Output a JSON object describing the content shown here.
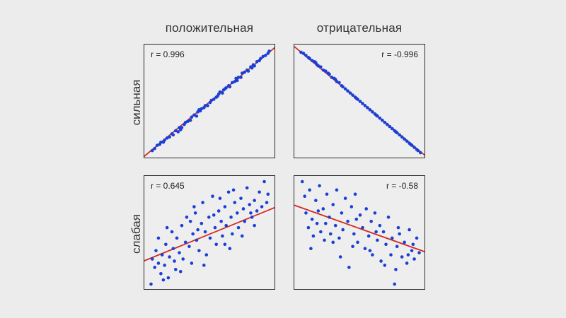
{
  "chart_data": {
    "type": "scatter",
    "columns": [
      "положительная",
      "отрицательная"
    ],
    "rows": [
      "сильная",
      "слабая"
    ],
    "colors": {
      "points": "#1a3fd6",
      "line": "#d42a20",
      "frame": "#2b2b2b",
      "background": "#eeeeee"
    },
    "grid": false,
    "panels": [
      {
        "row": 0,
        "col": 0,
        "r_label": "r = 0.996",
        "label_pos": "top-left",
        "xlim": [
          0,
          1
        ],
        "ylim": [
          0,
          1
        ],
        "fit": [
          [
            0,
            0.02
          ],
          [
            1,
            1.0
          ]
        ],
        "points": [
          [
            0.03,
            0.04
          ],
          [
            0.05,
            0.06
          ],
          [
            0.07,
            0.09
          ],
          [
            0.09,
            0.1
          ],
          [
            0.1,
            0.12
          ],
          [
            0.12,
            0.12
          ],
          [
            0.13,
            0.14
          ],
          [
            0.15,
            0.16
          ],
          [
            0.17,
            0.17
          ],
          [
            0.19,
            0.2
          ],
          [
            0.2,
            0.19
          ],
          [
            0.22,
            0.23
          ],
          [
            0.24,
            0.22
          ],
          [
            0.25,
            0.26
          ],
          [
            0.27,
            0.26
          ],
          [
            0.29,
            0.29
          ],
          [
            0.3,
            0.31
          ],
          [
            0.32,
            0.32
          ],
          [
            0.34,
            0.33
          ],
          [
            0.35,
            0.36
          ],
          [
            0.37,
            0.38
          ],
          [
            0.39,
            0.37
          ],
          [
            0.4,
            0.41
          ],
          [
            0.41,
            0.43
          ],
          [
            0.43,
            0.44
          ],
          [
            0.45,
            0.45
          ],
          [
            0.46,
            0.47
          ],
          [
            0.48,
            0.47
          ],
          [
            0.5,
            0.5
          ],
          [
            0.51,
            0.52
          ],
          [
            0.53,
            0.53
          ],
          [
            0.55,
            0.55
          ],
          [
            0.56,
            0.56
          ],
          [
            0.58,
            0.6
          ],
          [
            0.6,
            0.59
          ],
          [
            0.61,
            0.62
          ],
          [
            0.63,
            0.64
          ],
          [
            0.65,
            0.66
          ],
          [
            0.66,
            0.65
          ],
          [
            0.68,
            0.69
          ],
          [
            0.7,
            0.7
          ],
          [
            0.71,
            0.73
          ],
          [
            0.73,
            0.74
          ],
          [
            0.75,
            0.74
          ],
          [
            0.76,
            0.78
          ],
          [
            0.78,
            0.79
          ],
          [
            0.8,
            0.81
          ],
          [
            0.81,
            0.8
          ],
          [
            0.83,
            0.84
          ],
          [
            0.85,
            0.86
          ],
          [
            0.86,
            0.85
          ],
          [
            0.88,
            0.89
          ],
          [
            0.9,
            0.9
          ],
          [
            0.91,
            0.92
          ],
          [
            0.93,
            0.94
          ],
          [
            0.95,
            0.95
          ],
          [
            0.97,
            0.97
          ],
          [
            0.98,
            0.99
          ],
          [
            0.42,
            0.42
          ],
          [
            0.62,
            0.63
          ],
          [
            0.72,
            0.71
          ],
          [
            0.57,
            0.58
          ],
          [
            0.26,
            0.24
          ],
          [
            0.84,
            0.83
          ]
        ]
      },
      {
        "row": 0,
        "col": 1,
        "r_label": "r = -0.996",
        "label_pos": "top-right",
        "xlim": [
          0,
          1
        ],
        "ylim": [
          0,
          1
        ],
        "fit": [
          [
            0,
            1.0
          ],
          [
            1,
            0.02
          ]
        ],
        "points": [
          [
            0.02,
            0.98
          ],
          [
            0.04,
            0.97
          ],
          [
            0.06,
            0.95
          ],
          [
            0.08,
            0.93
          ],
          [
            0.09,
            0.92
          ],
          [
            0.11,
            0.9
          ],
          [
            0.13,
            0.89
          ],
          [
            0.15,
            0.86
          ],
          [
            0.16,
            0.85
          ],
          [
            0.18,
            0.84
          ],
          [
            0.2,
            0.81
          ],
          [
            0.22,
            0.8
          ],
          [
            0.24,
            0.78
          ],
          [
            0.25,
            0.77
          ],
          [
            0.27,
            0.74
          ],
          [
            0.29,
            0.73
          ],
          [
            0.31,
            0.7
          ],
          [
            0.33,
            0.69
          ],
          [
            0.35,
            0.66
          ],
          [
            0.36,
            0.65
          ],
          [
            0.38,
            0.63
          ],
          [
            0.4,
            0.61
          ],
          [
            0.42,
            0.59
          ],
          [
            0.44,
            0.57
          ],
          [
            0.46,
            0.55
          ],
          [
            0.48,
            0.53
          ],
          [
            0.5,
            0.51
          ],
          [
            0.52,
            0.49
          ],
          [
            0.54,
            0.47
          ],
          [
            0.56,
            0.45
          ],
          [
            0.58,
            0.43
          ],
          [
            0.6,
            0.41
          ],
          [
            0.62,
            0.39
          ],
          [
            0.64,
            0.37
          ],
          [
            0.66,
            0.35
          ],
          [
            0.68,
            0.33
          ],
          [
            0.7,
            0.31
          ],
          [
            0.72,
            0.29
          ],
          [
            0.74,
            0.27
          ],
          [
            0.76,
            0.25
          ],
          [
            0.78,
            0.23
          ],
          [
            0.8,
            0.21
          ],
          [
            0.82,
            0.19
          ],
          [
            0.84,
            0.17
          ],
          [
            0.86,
            0.15
          ],
          [
            0.88,
            0.13
          ],
          [
            0.9,
            0.11
          ],
          [
            0.92,
            0.09
          ],
          [
            0.94,
            0.07
          ],
          [
            0.96,
            0.05
          ],
          [
            0.97,
            0.04
          ],
          [
            0.99,
            0.02
          ],
          [
            0.14,
            0.88
          ],
          [
            0.3,
            0.72
          ],
          [
            0.47,
            0.54
          ],
          [
            0.63,
            0.38
          ],
          [
            0.79,
            0.22
          ],
          [
            0.91,
            0.1
          ]
        ]
      },
      {
        "row": 1,
        "col": 0,
        "r_label": "r = 0.645",
        "label_pos": "top-left",
        "xlim": [
          0,
          1
        ],
        "ylim": [
          0,
          1
        ],
        "fit": [
          [
            0,
            0.26
          ],
          [
            1,
            0.74
          ]
        ],
        "points": [
          [
            0.02,
            0.02
          ],
          [
            0.03,
            0.26
          ],
          [
            0.05,
            0.18
          ],
          [
            0.06,
            0.34
          ],
          [
            0.08,
            0.22
          ],
          [
            0.1,
            0.12
          ],
          [
            0.11,
            0.3
          ],
          [
            0.13,
            0.2
          ],
          [
            0.14,
            0.4
          ],
          [
            0.16,
            0.08
          ],
          [
            0.17,
            0.28
          ],
          [
            0.19,
            0.52
          ],
          [
            0.2,
            0.36
          ],
          [
            0.22,
            0.16
          ],
          [
            0.23,
            0.46
          ],
          [
            0.25,
            0.32
          ],
          [
            0.27,
            0.58
          ],
          [
            0.28,
            0.26
          ],
          [
            0.3,
            0.42
          ],
          [
            0.31,
            0.66
          ],
          [
            0.33,
            0.38
          ],
          [
            0.35,
            0.22
          ],
          [
            0.36,
            0.5
          ],
          [
            0.38,
            0.7
          ],
          [
            0.39,
            0.44
          ],
          [
            0.41,
            0.34
          ],
          [
            0.43,
            0.6
          ],
          [
            0.44,
            0.8
          ],
          [
            0.46,
            0.52
          ],
          [
            0.47,
            0.3
          ],
          [
            0.49,
            0.66
          ],
          [
            0.5,
            0.46
          ],
          [
            0.52,
            0.86
          ],
          [
            0.54,
            0.56
          ],
          [
            0.55,
            0.4
          ],
          [
            0.57,
            0.72
          ],
          [
            0.59,
            0.62
          ],
          [
            0.6,
            0.48
          ],
          [
            0.62,
            0.76
          ],
          [
            0.63,
            0.58
          ],
          [
            0.65,
            0.9
          ],
          [
            0.67,
            0.66
          ],
          [
            0.68,
            0.5
          ],
          [
            0.7,
            0.8
          ],
          [
            0.72,
            0.7
          ],
          [
            0.73,
            0.56
          ],
          [
            0.75,
            0.84
          ],
          [
            0.77,
            0.74
          ],
          [
            0.78,
            0.62
          ],
          [
            0.8,
            0.94
          ],
          [
            0.82,
            0.78
          ],
          [
            0.84,
            0.66
          ],
          [
            0.86,
            0.82
          ],
          [
            0.88,
            0.72
          ],
          [
            0.9,
            0.9
          ],
          [
            0.92,
            0.76
          ],
          [
            0.94,
            1.0
          ],
          [
            0.96,
            0.8
          ],
          [
            0.15,
            0.56
          ],
          [
            0.26,
            0.14
          ],
          [
            0.37,
            0.76
          ],
          [
            0.45,
            0.2
          ],
          [
            0.58,
            0.84
          ],
          [
            0.66,
            0.36
          ],
          [
            0.76,
            0.48
          ],
          [
            0.86,
            0.58
          ],
          [
            0.08,
            0.46
          ],
          [
            0.21,
            0.24
          ],
          [
            0.34,
            0.62
          ],
          [
            0.53,
            0.68
          ],
          [
            0.69,
            0.92
          ],
          [
            0.83,
            0.7
          ],
          [
            0.97,
            0.88
          ],
          [
            0.12,
            0.06
          ],
          [
            0.4,
            0.54
          ],
          [
            0.62,
            0.4
          ]
        ]
      },
      {
        "row": 1,
        "col": 1,
        "r_label": "r = -0.58",
        "label_pos": "top-right",
        "xlim": [
          0,
          1
        ],
        "ylim": [
          0,
          1
        ],
        "fit": [
          [
            0,
            0.76
          ],
          [
            1,
            0.34
          ]
        ],
        "points": [
          [
            0.03,
            1.0
          ],
          [
            0.05,
            0.86
          ],
          [
            0.06,
            0.7
          ],
          [
            0.08,
            0.56
          ],
          [
            0.09,
            0.92
          ],
          [
            0.11,
            0.64
          ],
          [
            0.12,
            0.48
          ],
          [
            0.14,
            0.82
          ],
          [
            0.15,
            0.6
          ],
          [
            0.17,
            0.96
          ],
          [
            0.18,
            0.52
          ],
          [
            0.2,
            0.74
          ],
          [
            0.21,
            0.44
          ],
          [
            0.23,
            0.88
          ],
          [
            0.25,
            0.66
          ],
          [
            0.26,
            0.5
          ],
          [
            0.28,
            0.78
          ],
          [
            0.3,
            0.58
          ],
          [
            0.31,
            0.92
          ],
          [
            0.33,
            0.46
          ],
          [
            0.35,
            0.7
          ],
          [
            0.36,
            0.54
          ],
          [
            0.38,
            0.84
          ],
          [
            0.4,
            0.62
          ],
          [
            0.41,
            0.18
          ],
          [
            0.43,
            0.76
          ],
          [
            0.45,
            0.5
          ],
          [
            0.46,
            0.88
          ],
          [
            0.48,
            0.42
          ],
          [
            0.5,
            0.68
          ],
          [
            0.52,
            0.56
          ],
          [
            0.54,
            0.36
          ],
          [
            0.55,
            0.74
          ],
          [
            0.57,
            0.48
          ],
          [
            0.59,
            0.62
          ],
          [
            0.6,
            0.3
          ],
          [
            0.62,
            0.7
          ],
          [
            0.64,
            0.44
          ],
          [
            0.66,
            0.58
          ],
          [
            0.67,
            0.24
          ],
          [
            0.69,
            0.52
          ],
          [
            0.71,
            0.4
          ],
          [
            0.73,
            0.66
          ],
          [
            0.75,
            0.3
          ],
          [
            0.76,
            0.46
          ],
          [
            0.78,
            0.02
          ],
          [
            0.8,
            0.38
          ],
          [
            0.82,
            0.5
          ],
          [
            0.84,
            0.28
          ],
          [
            0.86,
            0.42
          ],
          [
            0.88,
            0.22
          ],
          [
            0.9,
            0.54
          ],
          [
            0.92,
            0.34
          ],
          [
            0.94,
            0.26
          ],
          [
            0.96,
            0.46
          ],
          [
            0.98,
            0.32
          ],
          [
            0.1,
            0.36
          ],
          [
            0.22,
            0.6
          ],
          [
            0.34,
            0.28
          ],
          [
            0.47,
            0.64
          ],
          [
            0.58,
            0.34
          ],
          [
            0.7,
            0.2
          ],
          [
            0.81,
            0.56
          ],
          [
            0.93,
            0.4
          ],
          [
            0.16,
            0.72
          ],
          [
            0.28,
            0.42
          ],
          [
            0.44,
            0.38
          ],
          [
            0.63,
            0.52
          ],
          [
            0.79,
            0.16
          ],
          [
            0.89,
            0.3
          ]
        ]
      }
    ]
  }
}
